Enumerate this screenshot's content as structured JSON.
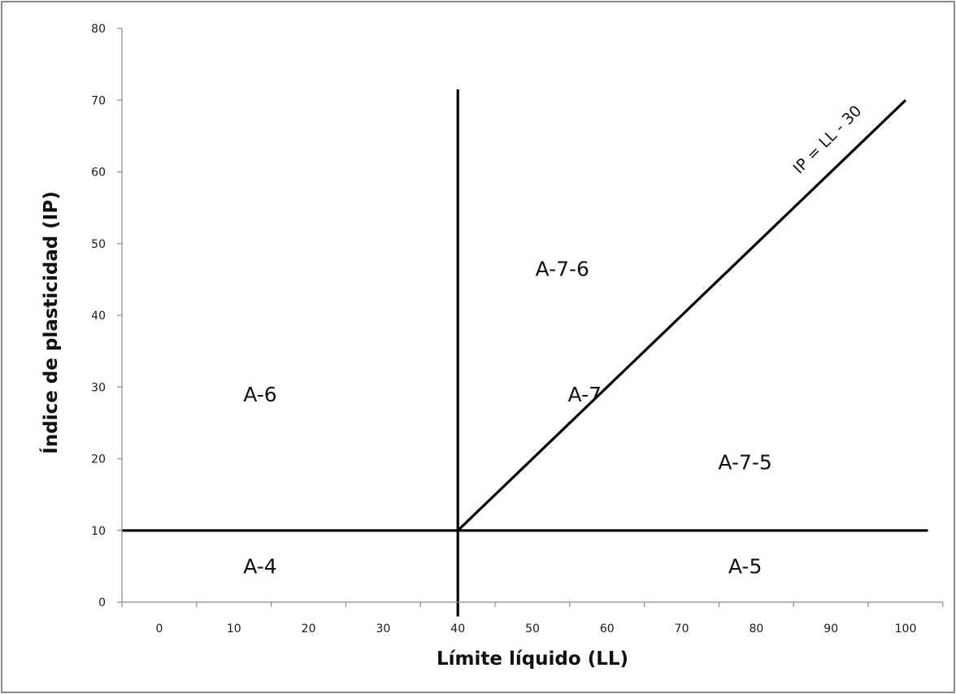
{
  "chart_data": {
    "type": "line",
    "title": "",
    "xlabel": "Límite líquido  (LL)",
    "ylabel": "Índice de plasticidad  (IP)",
    "x_axis": {
      "ticks": [
        0,
        10,
        20,
        30,
        40,
        50,
        60,
        70,
        80,
        90,
        100
      ],
      "tick_labels": [
        "0",
        "10",
        "20",
        "30",
        "40",
        "50",
        "60",
        "70",
        "80",
        "90",
        "100"
      ]
    },
    "y_axis": {
      "ylim": [
        0,
        80
      ],
      "ticks": [
        0,
        10,
        20,
        30,
        40,
        50,
        60,
        70,
        80
      ],
      "tick_labels": [
        "0",
        "10",
        "20",
        "30",
        "40",
        "50",
        "60",
        "70",
        "80"
      ]
    },
    "grid": false,
    "legend": "none",
    "series": [
      {
        "id": "horizontal-boundary",
        "x": [
          -5,
          103
        ],
        "y": [
          10,
          10
        ]
      },
      {
        "id": "vertical-boundary",
        "x": [
          40,
          40
        ],
        "y": [
          -2,
          71.5
        ]
      },
      {
        "name": "IP = LL - 30",
        "x": [
          40,
          100
        ],
        "y": [
          10,
          70
        ]
      }
    ],
    "annotations": [
      {
        "text": "A-6",
        "x": 13.5,
        "y": 28
      },
      {
        "text": "A-4",
        "x": 13.5,
        "y": 4
      },
      {
        "text": "A-7-6",
        "x": 54,
        "y": 45.5
      },
      {
        "text": "A-7",
        "x": 57,
        "y": 28
      },
      {
        "text": "A-7-5",
        "x": 78.5,
        "y": 18.5
      },
      {
        "text": "A-5",
        "x": 78.5,
        "y": 4
      }
    ],
    "line_label": {
      "text": "IP = LL - 30",
      "x": 90,
      "y": 64,
      "angle": 45
    }
  }
}
